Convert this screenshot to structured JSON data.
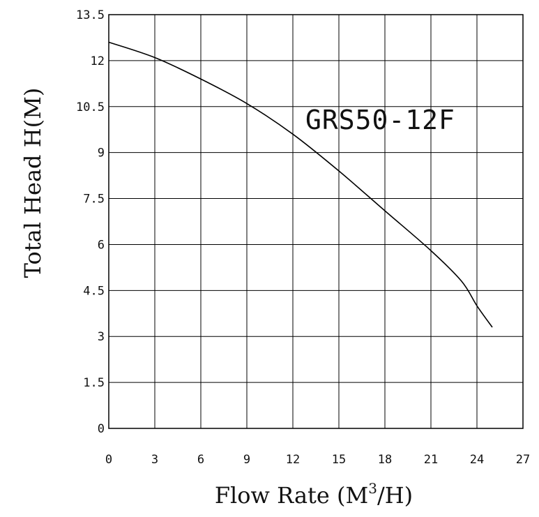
{
  "chart_data": {
    "type": "line",
    "title": "",
    "xlabel": "Flow Rate (M",
    "xlabel_sup": "3",
    "xlabel_suffix": "/H)",
    "ylabel": "Total Head H(M)",
    "xlim": [
      0,
      27
    ],
    "ylim": [
      0,
      13.5
    ],
    "x_ticks": [
      "0",
      "3",
      "6",
      "9",
      "12",
      "15",
      "18",
      "21",
      "24",
      "27"
    ],
    "y_ticks": [
      "0",
      "1.5",
      "3",
      "4.5",
      "6",
      "7.5",
      "9",
      "10.5",
      "12",
      "13.5"
    ],
    "grid": true,
    "series": [
      {
        "name": "GRS50-12F",
        "x": [
          0,
          3,
          6,
          9,
          12,
          15,
          18,
          21,
          23,
          24,
          25
        ],
        "y": [
          12.6,
          12.1,
          11.4,
          10.6,
          9.6,
          8.4,
          7.1,
          5.8,
          4.8,
          4.0,
          3.3
        ]
      }
    ]
  }
}
